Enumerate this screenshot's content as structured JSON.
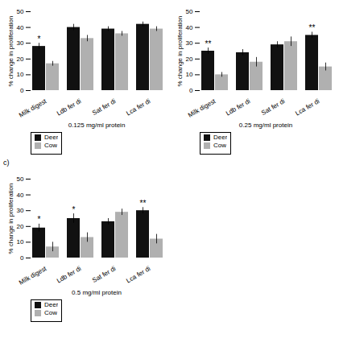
{
  "chart_data": [
    {
      "type": "bar",
      "xlabel": "0.125 mg/ml protein",
      "ylabel": "% change in proliferation",
      "categories": [
        "Milk digest",
        "Ldb fer di",
        "Sat fer di",
        "Lca fer di"
      ],
      "series": [
        {
          "name": "Deer",
          "color": "#111111",
          "values": [
            28,
            40,
            39,
            42
          ],
          "errors": [
            2,
            2,
            1.5,
            1.5
          ]
        },
        {
          "name": "Cow",
          "color": "#b0b0b0",
          "values": [
            17,
            33,
            36,
            39
          ],
          "errors": [
            1.5,
            2,
            1.5,
            1.5
          ]
        }
      ],
      "annotations": [
        {
          "text": "*",
          "category": "Milk digest",
          "series": "Deer"
        }
      ],
      "ylim": [
        0,
        50
      ],
      "yticks": [
        0,
        10,
        20,
        30,
        40,
        50
      ],
      "legend": "below"
    },
    {
      "type": "bar",
      "xlabel": "0.25 mg/ml protein",
      "ylabel": "% change in proliferation",
      "categories": [
        "Milk digest",
        "Ldb fer di",
        "Sat fer di",
        "Lca fer di"
      ],
      "series": [
        {
          "name": "Deer",
          "color": "#111111",
          "values": [
            25,
            24,
            29,
            35
          ],
          "errors": [
            2,
            2,
            2,
            2
          ]
        },
        {
          "name": "Cow",
          "color": "#b0b0b0",
          "values": [
            10,
            18,
            31,
            15
          ],
          "errors": [
            1.5,
            3,
            3,
            2.5
          ]
        }
      ],
      "annotations": [
        {
          "text": "**",
          "category": "Milk digest",
          "series": "Deer"
        },
        {
          "text": "**",
          "category": "Lca fer di",
          "series": "Deer"
        }
      ],
      "ylim": [
        0,
        50
      ],
      "yticks": [
        0,
        10,
        20,
        30,
        40,
        50
      ],
      "legend": "below"
    },
    {
      "type": "bar",
      "title": "c)",
      "xlabel": "0.5 mg/ml protein",
      "ylabel": "% change in proliferation",
      "categories": [
        "Milk digest",
        "Ldb fer di",
        "Sat fer di",
        "Lca fer di"
      ],
      "series": [
        {
          "name": "Deer",
          "color": "#111111",
          "values": [
            19,
            25,
            23,
            30
          ],
          "errors": [
            2.5,
            3,
            2,
            2
          ]
        },
        {
          "name": "Cow",
          "color": "#b0b0b0",
          "values": [
            7,
            13,
            29,
            12
          ],
          "errors": [
            3,
            3,
            2,
            3
          ]
        }
      ],
      "annotations": [
        {
          "text": "*",
          "category": "Milk digest",
          "series": "Deer"
        },
        {
          "text": "*",
          "category": "Ldb fer di",
          "series": "Deer"
        },
        {
          "text": "**",
          "category": "Lca fer di",
          "series": "Deer"
        }
      ],
      "ylim": [
        0,
        50
      ],
      "yticks": [
        0,
        10,
        20,
        30,
        40,
        50
      ],
      "legend": "below"
    }
  ]
}
